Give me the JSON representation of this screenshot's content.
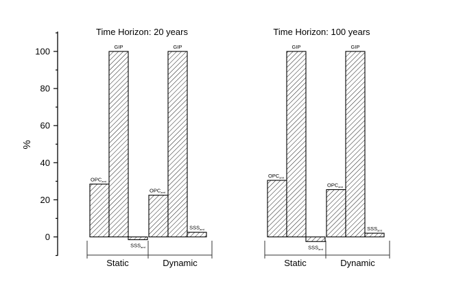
{
  "chart_data": {
    "type": "bar",
    "ylabel": "%",
    "ylim": [
      -10,
      110
    ],
    "yticks": [
      0,
      20,
      40,
      60,
      80,
      100
    ],
    "panels": [
      {
        "title": "Time Horizon: 20 years",
        "groups": [
          {
            "label": "Static",
            "bars": [
              {
                "label": "OPC",
                "sub": "amt",
                "value": 28.5
              },
              {
                "label": "GIP",
                "sub": "",
                "value": 100
              },
              {
                "label": "SSS",
                "sub": "amt",
                "value": -1.5
              }
            ]
          },
          {
            "label": "Dynamic",
            "bars": [
              {
                "label": "OPC",
                "sub": "amt",
                "value": 22.5
              },
              {
                "label": "GIP",
                "sub": "",
                "value": 100
              },
              {
                "label": "SSS",
                "sub": "amt",
                "value": 2.5
              }
            ]
          }
        ]
      },
      {
        "title": "Time Horizon: 100 years",
        "groups": [
          {
            "label": "Static",
            "bars": [
              {
                "label": "OPC",
                "sub": "amt",
                "value": 30.5
              },
              {
                "label": "GIP",
                "sub": "",
                "value": 100
              },
              {
                "label": "SSS",
                "sub": "amt",
                "value": -2.5
              }
            ]
          },
          {
            "label": "Dynamic",
            "bars": [
              {
                "label": "OPC",
                "sub": "amt",
                "value": 25.5
              },
              {
                "label": "GIP",
                "sub": "",
                "value": 100
              },
              {
                "label": "SSS",
                "sub": "amt",
                "value": 2
              }
            ]
          }
        ]
      }
    ]
  }
}
